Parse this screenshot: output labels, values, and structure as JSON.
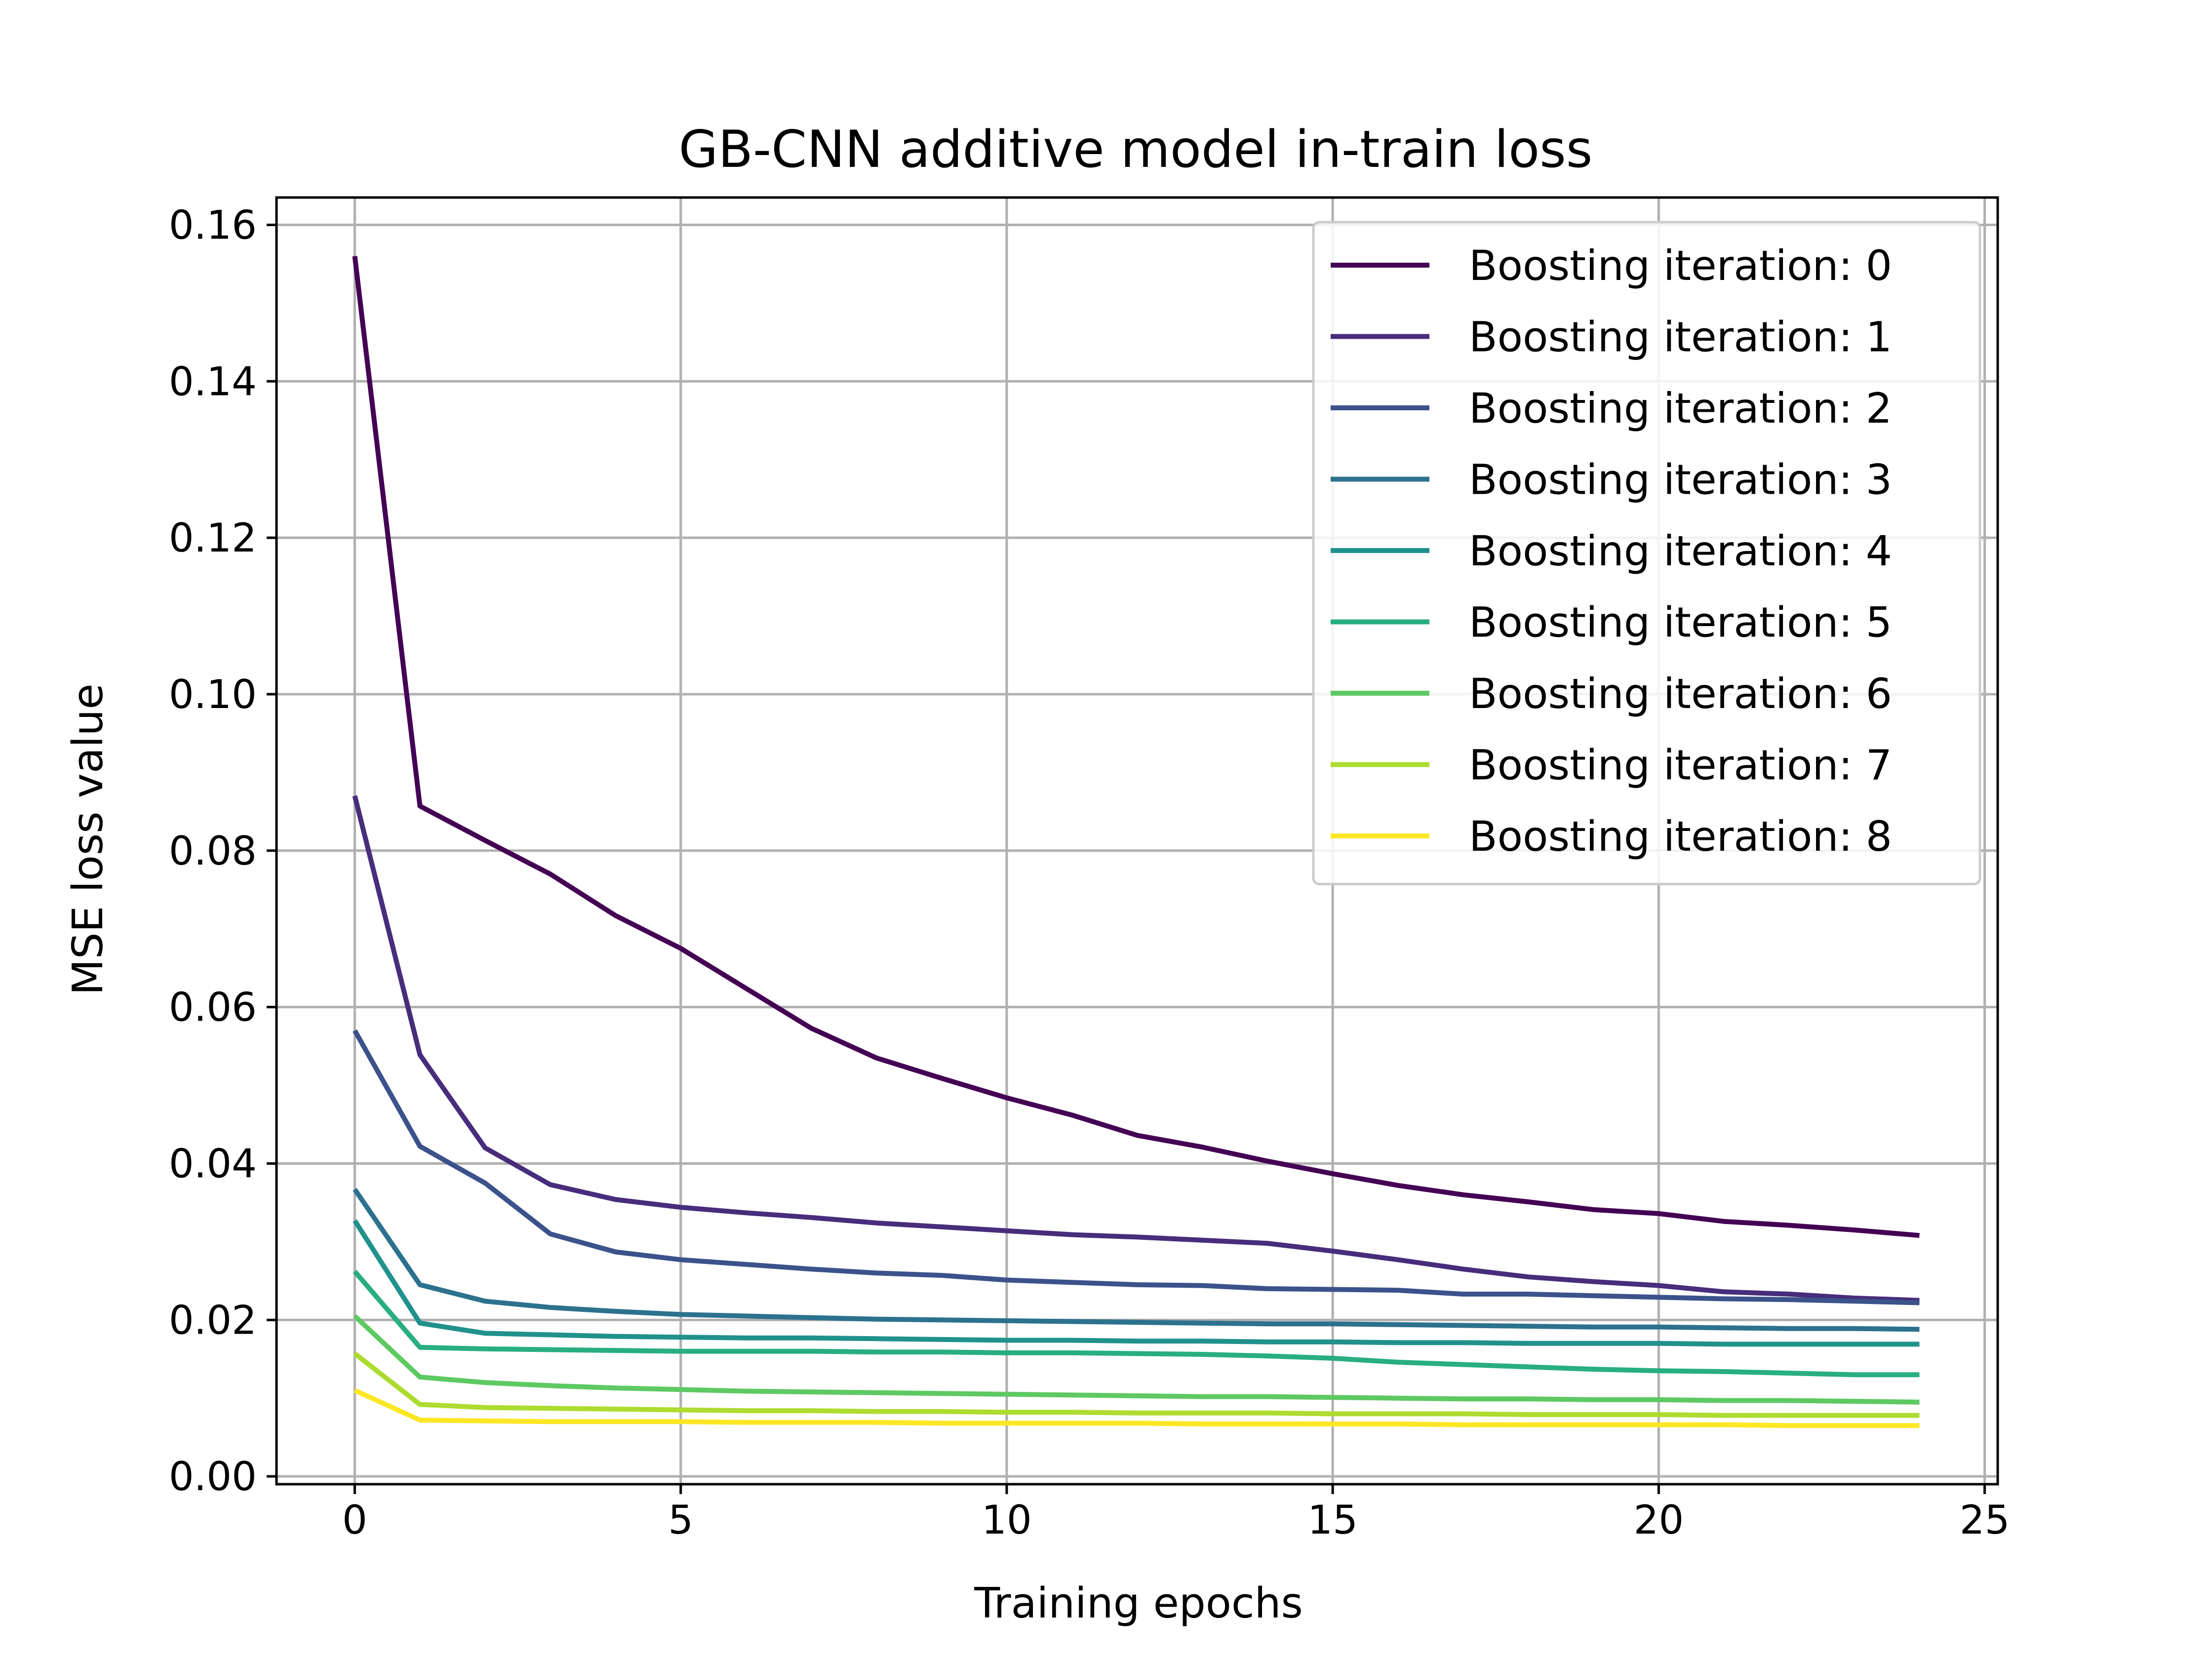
{
  "chart_data": {
    "type": "line",
    "title": "GB-CNN additive model in-train loss",
    "xlabel": "Training epochs",
    "ylabel": "MSE loss value",
    "xlim": [
      -1.2,
      25.2
    ],
    "ylim": [
      -0.001,
      0.1635
    ],
    "xticks": [
      0,
      5,
      10,
      15,
      20,
      25
    ],
    "yticks": [
      0.0,
      0.02,
      0.04,
      0.06,
      0.08,
      0.1,
      0.12,
      0.14,
      0.16
    ],
    "xtick_labels": [
      "0",
      "5",
      "10",
      "15",
      "20",
      "25"
    ],
    "ytick_labels": [
      "0.00",
      "0.02",
      "0.04",
      "0.06",
      "0.08",
      "0.10",
      "0.12",
      "0.14",
      "0.16"
    ],
    "grid": true,
    "legend_position": "top-right",
    "x": [
      0,
      1,
      2,
      3,
      4,
      5,
      6,
      7,
      8,
      9,
      10,
      11,
      12,
      13,
      14,
      15,
      16,
      17,
      18,
      19,
      20,
      21,
      22,
      23,
      24
    ],
    "series": [
      {
        "name": "Boosting iteration: 0",
        "color": "#440154",
        "values": [
          0.156,
          0.0857,
          0.0813,
          0.077,
          0.0717,
          0.0675,
          0.0624,
          0.0573,
          0.0535,
          0.0509,
          0.0484,
          0.0462,
          0.0436,
          0.0421,
          0.0403,
          0.0387,
          0.0372,
          0.036,
          0.0351,
          0.0341,
          0.0336,
          0.0326,
          0.0321,
          0.0315,
          0.0308
        ]
      },
      {
        "name": "Boosting iteration: 1",
        "color": "#472d7b",
        "values": [
          0.087,
          0.0539,
          0.042,
          0.0373,
          0.0354,
          0.0344,
          0.0337,
          0.0331,
          0.0324,
          0.0319,
          0.0314,
          0.0309,
          0.0306,
          0.0302,
          0.0298,
          0.0288,
          0.0277,
          0.0265,
          0.0255,
          0.0249,
          0.0244,
          0.0236,
          0.0233,
          0.0228,
          0.0225
        ]
      },
      {
        "name": "Boosting iteration: 2",
        "color": "#3b528b",
        "values": [
          0.057,
          0.0422,
          0.0375,
          0.031,
          0.0287,
          0.0277,
          0.0271,
          0.0265,
          0.026,
          0.0257,
          0.0251,
          0.0248,
          0.0245,
          0.0244,
          0.024,
          0.0239,
          0.0238,
          0.0233,
          0.0233,
          0.0231,
          0.0229,
          0.0227,
          0.0226,
          0.0224,
          0.0222
        ]
      },
      {
        "name": "Boosting iteration: 3",
        "color": "#2c728e",
        "values": [
          0.0367,
          0.0245,
          0.0224,
          0.0216,
          0.0211,
          0.0207,
          0.0205,
          0.0203,
          0.0201,
          0.02,
          0.0199,
          0.0198,
          0.0197,
          0.0196,
          0.0195,
          0.0195,
          0.0194,
          0.0193,
          0.0192,
          0.0191,
          0.0191,
          0.019,
          0.0189,
          0.0189,
          0.0188
        ]
      },
      {
        "name": "Boosting iteration: 4",
        "color": "#21918c",
        "values": [
          0.0327,
          0.0196,
          0.0183,
          0.0181,
          0.0179,
          0.0178,
          0.0177,
          0.0177,
          0.0176,
          0.0175,
          0.0174,
          0.0174,
          0.0173,
          0.0173,
          0.0172,
          0.0172,
          0.0171,
          0.0171,
          0.017,
          0.017,
          0.017,
          0.0169,
          0.0169,
          0.0169,
          0.0169
        ]
      },
      {
        "name": "Boosting iteration: 5",
        "color": "#28ae80",
        "values": [
          0.0262,
          0.0165,
          0.0163,
          0.0162,
          0.0161,
          0.016,
          0.016,
          0.016,
          0.0159,
          0.0159,
          0.0158,
          0.0158,
          0.0157,
          0.0156,
          0.0154,
          0.0151,
          0.0146,
          0.0143,
          0.014,
          0.0137,
          0.0135,
          0.0134,
          0.0132,
          0.013,
          0.013
        ]
      },
      {
        "name": "Boosting iteration: 6",
        "color": "#5ec962",
        "values": [
          0.0205,
          0.0127,
          0.012,
          0.0116,
          0.0113,
          0.0111,
          0.0109,
          0.0108,
          0.0107,
          0.0106,
          0.0105,
          0.0104,
          0.0103,
          0.0102,
          0.0102,
          0.0101,
          0.01,
          0.0099,
          0.0099,
          0.0098,
          0.0098,
          0.0097,
          0.0097,
          0.0096,
          0.0095
        ]
      },
      {
        "name": "Boosting iteration: 7",
        "color": "#addc30",
        "values": [
          0.0157,
          0.0092,
          0.0088,
          0.0087,
          0.0086,
          0.0085,
          0.0084,
          0.0084,
          0.0083,
          0.0083,
          0.0082,
          0.0082,
          0.0081,
          0.0081,
          0.0081,
          0.008,
          0.008,
          0.008,
          0.0079,
          0.0079,
          0.0079,
          0.0078,
          0.0078,
          0.0078,
          0.0078
        ]
      },
      {
        "name": "Boosting iteration: 8",
        "color": "#fde725",
        "values": [
          0.011,
          0.0072,
          0.0071,
          0.007,
          0.007,
          0.007,
          0.0069,
          0.0069,
          0.0069,
          0.0068,
          0.0068,
          0.0068,
          0.0068,
          0.0067,
          0.0067,
          0.0067,
          0.0067,
          0.0066,
          0.0066,
          0.0066,
          0.0066,
          0.0066,
          0.0065,
          0.0065,
          0.0065
        ]
      }
    ]
  }
}
